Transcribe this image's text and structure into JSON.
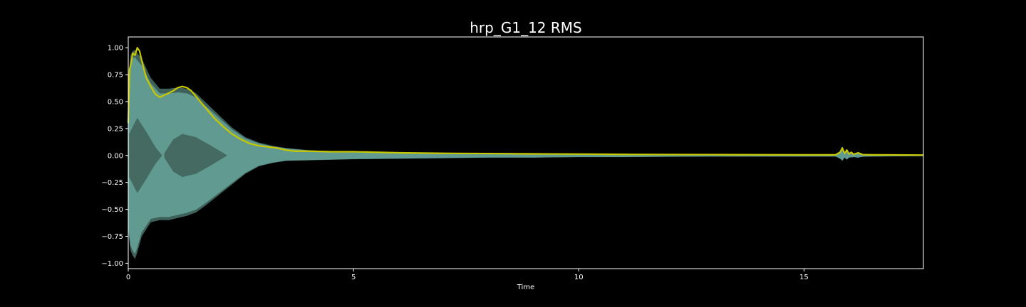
{
  "chart_data": {
    "type": "area",
    "title": "hrp_G1_12 RMS",
    "xlabel": "Time",
    "ylabel": "",
    "xlim": [
      0,
      17.65
    ],
    "ylim": [
      -1.05,
      1.1
    ],
    "x_ticks": [
      0,
      5,
      10,
      15
    ],
    "x_tick_labels": [
      "0",
      "5",
      "10",
      "15"
    ],
    "y_ticks": [
      1.0,
      0.75,
      0.5,
      0.25,
      0.0,
      -0.25,
      -0.5,
      -0.75,
      -1.0
    ],
    "y_tick_labels": [
      "1.00",
      "0.75",
      "0.50",
      "0.25",
      "0.00",
      "−0.25",
      "−0.50",
      "−0.75",
      "−1.00"
    ],
    "grid": false,
    "legend": "none",
    "colors": {
      "background": "#000000",
      "axes": "#ffffff",
      "text": "#ffffff",
      "waveform_outer": "#3f615b",
      "waveform_inner": "#64a196",
      "rms": "#c8c800"
    },
    "series": [
      {
        "kind": "waveform-envelope",
        "x": [
          0,
          0.05,
          0.1,
          0.15,
          0.2,
          0.3,
          0.5,
          0.7,
          0.9,
          1.1,
          1.3,
          1.5,
          1.7,
          2.0,
          2.3,
          2.6,
          2.9,
          3.2,
          3.5,
          4.0,
          5.0,
          6.0,
          7.0,
          8.0,
          9.0,
          10.0,
          11.0,
          12.0,
          13.0,
          14.0,
          15.0,
          15.7,
          15.8,
          15.85,
          15.9,
          15.95,
          16.0,
          16.1,
          16.2,
          16.3,
          16.5,
          17.0,
          17.65
        ],
        "upper": [
          0.7,
          0.93,
          0.97,
          0.98,
          0.95,
          0.9,
          0.72,
          0.62,
          0.62,
          0.63,
          0.62,
          0.58,
          0.5,
          0.38,
          0.26,
          0.17,
          0.12,
          0.09,
          0.07,
          0.05,
          0.03,
          0.03,
          0.02,
          0.02,
          0.02,
          0.015,
          0.015,
          0.012,
          0.01,
          0.01,
          0.01,
          0.01,
          0.03,
          0.06,
          0.02,
          0.04,
          0.02,
          0.015,
          0.025,
          0.012,
          0.01,
          0.008,
          0.006
        ],
        "lower": [
          -0.7,
          -0.88,
          -0.93,
          -0.96,
          -0.9,
          -0.75,
          -0.62,
          -0.6,
          -0.6,
          -0.58,
          -0.56,
          -0.53,
          -0.47,
          -0.37,
          -0.27,
          -0.17,
          -0.1,
          -0.07,
          -0.05,
          -0.045,
          -0.035,
          -0.03,
          -0.025,
          -0.02,
          -0.02,
          -0.015,
          -0.015,
          -0.012,
          -0.01,
          -0.01,
          -0.01,
          -0.01,
          -0.03,
          -0.05,
          -0.02,
          -0.04,
          -0.02,
          -0.015,
          -0.02,
          -0.012,
          -0.01,
          -0.008,
          -0.006
        ]
      },
      {
        "kind": "rms",
        "x": [
          0,
          0.03,
          0.06,
          0.1,
          0.15,
          0.2,
          0.25,
          0.3,
          0.4,
          0.5,
          0.6,
          0.7,
          0.8,
          0.9,
          1.0,
          1.1,
          1.2,
          1.3,
          1.4,
          1.5,
          1.7,
          1.9,
          2.1,
          2.3,
          2.5,
          2.7,
          2.9,
          3.1,
          3.3,
          3.5,
          3.7,
          4.0,
          4.5,
          5.0,
          5.5,
          6.0,
          7.0,
          8.0,
          9.0,
          10.0,
          11.0,
          12.0,
          13.0,
          14.0,
          15.0,
          15.7,
          15.8,
          15.85,
          15.9,
          15.95,
          16.0,
          16.05,
          16.1,
          16.2,
          16.3,
          16.5,
          17.0,
          17.65
        ],
        "y": [
          0.3,
          0.8,
          0.85,
          0.95,
          0.93,
          1.0,
          0.97,
          0.88,
          0.72,
          0.64,
          0.57,
          0.54,
          0.56,
          0.58,
          0.6,
          0.63,
          0.64,
          0.63,
          0.6,
          0.55,
          0.45,
          0.35,
          0.27,
          0.2,
          0.15,
          0.11,
          0.09,
          0.08,
          0.07,
          0.05,
          0.04,
          0.04,
          0.035,
          0.035,
          0.03,
          0.025,
          0.02,
          0.018,
          0.015,
          0.013,
          0.01,
          0.009,
          0.008,
          0.007,
          0.006,
          0.006,
          0.03,
          0.07,
          0.02,
          0.05,
          0.015,
          0.03,
          0.01,
          0.025,
          0.008,
          0.006,
          0.005,
          0.004
        ]
      }
    ]
  }
}
